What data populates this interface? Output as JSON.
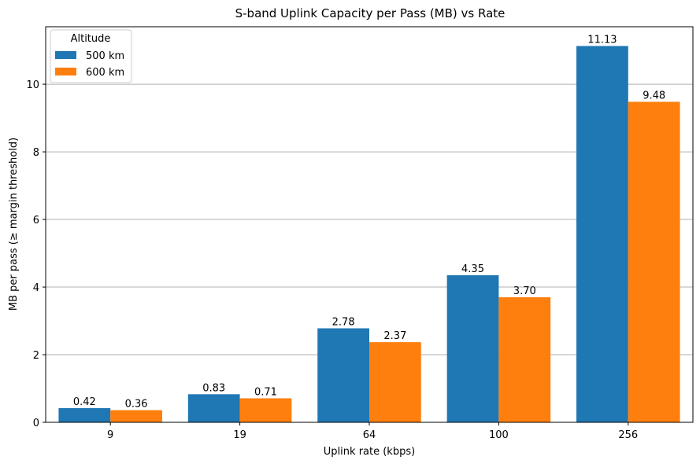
{
  "chart_data": {
    "type": "bar",
    "title": "S-band Uplink Capacity per Pass (MB) vs Rate",
    "xlabel": "Uplink rate (kbps)",
    "ylabel": "MB per pass (≥ margin threshold)",
    "categories": [
      "9",
      "19",
      "64",
      "100",
      "256"
    ],
    "series": [
      {
        "name": "500 km",
        "color": "#1f77b4",
        "values": [
          0.42,
          0.83,
          2.78,
          4.35,
          11.13
        ],
        "labels": [
          "0.42",
          "0.83",
          "2.78",
          "4.35",
          "11.13"
        ]
      },
      {
        "name": "600 km",
        "color": "#ff7f0e",
        "values": [
          0.36,
          0.71,
          2.37,
          3.7,
          9.48
        ],
        "labels": [
          "0.36",
          "0.71",
          "2.37",
          "3.70",
          "9.48"
        ]
      }
    ],
    "ylim": [
      0,
      11.7
    ],
    "yticks": [
      "0",
      "2",
      "4",
      "6",
      "8",
      "10"
    ],
    "grid": "y",
    "legend": {
      "title": "Altitude",
      "placement": "upper-left"
    }
  }
}
